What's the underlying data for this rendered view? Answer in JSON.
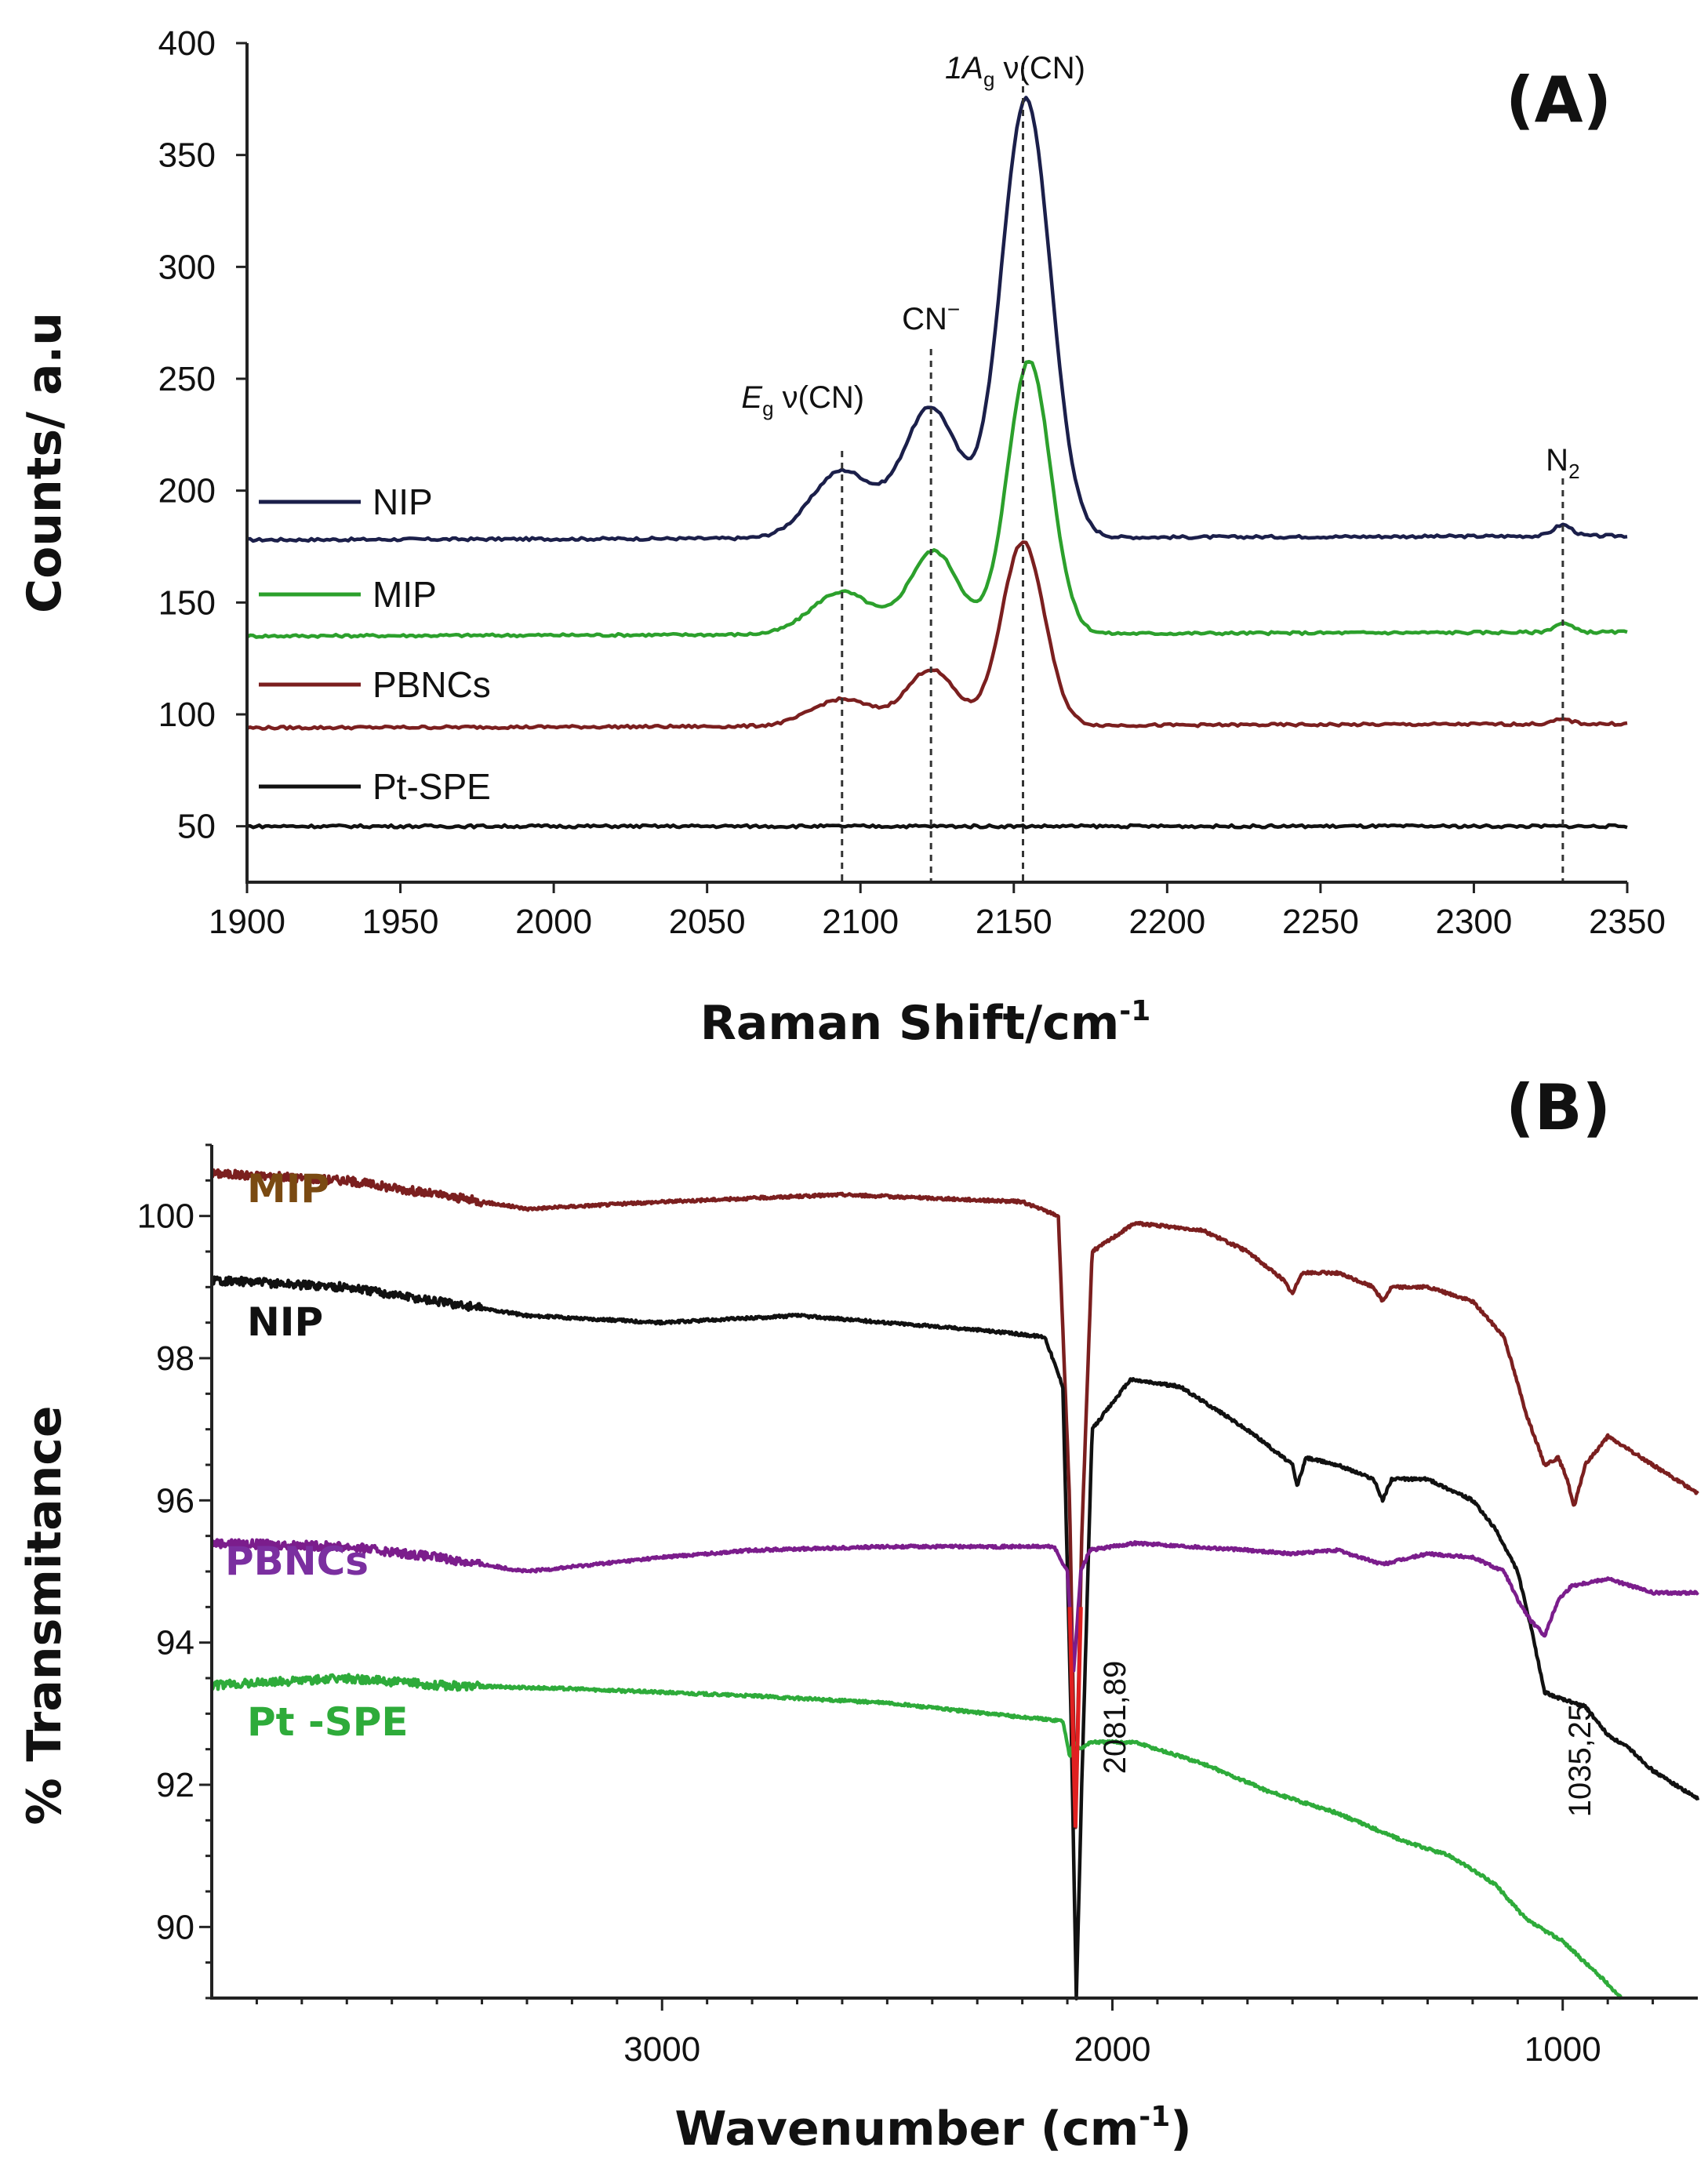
{
  "chart_data": [
    {
      "panel": "(A)",
      "type": "line",
      "xlabel": "Raman Shift/cm",
      "xlabel_sup": "-1",
      "ylabel": "Counts/ a.u",
      "xlim": [
        1900,
        2350
      ],
      "ylim": [
        25,
        400
      ],
      "x_ticks": [
        1900,
        1950,
        2000,
        2050,
        2100,
        2150,
        2200,
        2250,
        2300,
        2350
      ],
      "y_ticks": [
        50,
        100,
        150,
        200,
        250,
        300,
        350,
        400
      ],
      "legend": [
        "NIP",
        "MIP",
        "PBNCs",
        "Pt-SPE"
      ],
      "annotations": [
        {
          "x": 2094,
          "text": "E",
          "sub": "g",
          "rest": " ν(CN)"
        },
        {
          "x": 2123,
          "text": "CN",
          "sup": "−"
        },
        {
          "x": 2153,
          "text": "1A",
          "sub": "g",
          "rest": " ν(CN)"
        },
        {
          "x": 2329,
          "text": "N",
          "sub": "2"
        }
      ],
      "series": [
        {
          "name": "NIP",
          "color": "#1b1f4a",
          "baseline": 178,
          "peaks": [
            {
              "x": 2094,
              "h": 30,
              "w": 10
            },
            {
              "x": 2123,
              "h": 58,
              "w": 9
            },
            {
              "x": 2154,
              "h": 196,
              "w": 8
            },
            {
              "x": 2329,
              "h": 5,
              "w": 3
            }
          ]
        },
        {
          "name": "MIP",
          "color": "#2ca02c",
          "baseline": 135,
          "peaks": [
            {
              "x": 2094,
              "h": 19,
              "w": 10
            },
            {
              "x": 2124,
              "h": 37,
              "w": 8
            },
            {
              "x": 2155,
              "h": 122,
              "w": 7
            },
            {
              "x": 2329,
              "h": 4,
              "w": 3
            }
          ]
        },
        {
          "name": "PBNCs",
          "color": "#7b1f1f",
          "baseline": 94,
          "peaks": [
            {
              "x": 2094,
              "h": 12,
              "w": 10
            },
            {
              "x": 2123,
              "h": 25,
              "w": 8
            },
            {
              "x": 2153,
              "h": 82,
              "w": 7
            },
            {
              "x": 2329,
              "h": 2,
              "w": 3
            }
          ]
        },
        {
          "name": "Pt-SPE",
          "color": "#111111",
          "baseline": 50,
          "peaks": []
        }
      ]
    },
    {
      "panel": "(B)",
      "type": "line",
      "xlabel": "Wavenumber (cm",
      "xlabel_sup": "-1",
      "xlabel_end": ")",
      "ylabel": "% Transmitance",
      "xlim": [
        4000,
        700
      ],
      "ylim": [
        89,
        101
      ],
      "x_ticks": [
        3000,
        2000,
        1000
      ],
      "y_ticks": [
        90,
        92,
        94,
        96,
        98,
        100
      ],
      "annotations": [
        {
          "x": 2081.89,
          "text": "2081,89"
        },
        {
          "x": 1035.25,
          "text": "1035,25"
        }
      ],
      "series": [
        {
          "name": "MIP",
          "color": "#7b1f1f",
          "label_color": "#7a4a12",
          "points": [
            [
              4000,
              100.6
            ],
            [
              3700,
              100.5
            ],
            [
              3300,
              100.1
            ],
            [
              3000,
              100.2
            ],
            [
              2600,
              100.3
            ],
            [
              2200,
              100.2
            ],
            [
              2120,
              100.0
            ],
            [
              2095,
              96.0
            ],
            [
              2082,
              91.4
            ],
            [
              2068,
              95.5
            ],
            [
              2045,
              99.5
            ],
            [
              1950,
              99.9
            ],
            [
              1800,
              99.8
            ],
            [
              1700,
              99.5
            ],
            [
              1620,
              99.1
            ],
            [
              1600,
              98.9
            ],
            [
              1580,
              99.2
            ],
            [
              1500,
              99.2
            ],
            [
              1420,
              99.0
            ],
            [
              1400,
              98.8
            ],
            [
              1380,
              99.0
            ],
            [
              1300,
              99.0
            ],
            [
              1200,
              98.8
            ],
            [
              1130,
              98.3
            ],
            [
              1080,
              97.2
            ],
            [
              1040,
              96.5
            ],
            [
              1010,
              96.6
            ],
            [
              990,
              96.3
            ],
            [
              975,
              95.9
            ],
            [
              950,
              96.5
            ],
            [
              900,
              96.9
            ],
            [
              850,
              96.7
            ],
            [
              800,
              96.5
            ],
            [
              750,
              96.3
            ],
            [
              700,
              96.1
            ]
          ]
        },
        {
          "name": "NIP",
          "color": "#111111",
          "label_color": "#111111",
          "points": [
            [
              4000,
              99.1
            ],
            [
              3700,
              99.0
            ],
            [
              3500,
              98.8
            ],
            [
              3300,
              98.6
            ],
            [
              3000,
              98.5
            ],
            [
              2700,
              98.6
            ],
            [
              2300,
              98.4
            ],
            [
              2150,
              98.3
            ],
            [
              2110,
              97.6
            ],
            [
              2092,
              93.0
            ],
            [
              2080,
              89.0
            ],
            [
              2068,
              92.0
            ],
            [
              2045,
              97.0
            ],
            [
              1960,
              97.7
            ],
            [
              1850,
              97.6
            ],
            [
              1750,
              97.2
            ],
            [
              1680,
              96.9
            ],
            [
              1600,
              96.5
            ],
            [
              1590,
              96.2
            ],
            [
              1570,
              96.6
            ],
            [
              1500,
              96.5
            ],
            [
              1420,
              96.3
            ],
            [
              1400,
              96.0
            ],
            [
              1380,
              96.3
            ],
            [
              1300,
              96.3
            ],
            [
              1200,
              96.0
            ],
            [
              1150,
              95.6
            ],
            [
              1100,
              95.0
            ],
            [
              1070,
              94.2
            ],
            [
              1040,
              93.3
            ],
            [
              1000,
              93.2
            ],
            [
              950,
              93.1
            ],
            [
              900,
              92.7
            ],
            [
              850,
              92.5
            ],
            [
              800,
              92.2
            ],
            [
              750,
              92.0
            ],
            [
              700,
              91.8
            ]
          ]
        },
        {
          "name": "PBNCs",
          "color": "#7b1d8c",
          "label_color": "#7b2fa0",
          "points": [
            [
              4000,
              95.4
            ],
            [
              3700,
              95.35
            ],
            [
              3500,
              95.2
            ],
            [
              3300,
              95.0
            ],
            [
              3000,
              95.2
            ],
            [
              2800,
              95.3
            ],
            [
              2500,
              95.35
            ],
            [
              2200,
              95.35
            ],
            [
              2130,
              95.35
            ],
            [
              2100,
              95.0
            ],
            [
              2086,
              93.6
            ],
            [
              2070,
              95.0
            ],
            [
              2050,
              95.3
            ],
            [
              1950,
              95.4
            ],
            [
              1700,
              95.3
            ],
            [
              1600,
              95.25
            ],
            [
              1500,
              95.3
            ],
            [
              1400,
              95.1
            ],
            [
              1300,
              95.25
            ],
            [
              1200,
              95.2
            ],
            [
              1130,
              95.0
            ],
            [
              1100,
              94.6
            ],
            [
              1070,
              94.3
            ],
            [
              1040,
              94.1
            ],
            [
              1010,
              94.6
            ],
            [
              980,
              94.8
            ],
            [
              900,
              94.9
            ],
            [
              850,
              94.8
            ],
            [
              800,
              94.7
            ],
            [
              750,
              94.7
            ],
            [
              700,
              94.7
            ]
          ]
        },
        {
          "name": "Pt -SPE",
          "color": "#2eab3a",
          "label_color": "#2eab3a",
          "points": [
            [
              4000,
              93.4
            ],
            [
              3700,
              93.5
            ],
            [
              3500,
              93.4
            ],
            [
              3200,
              93.35
            ],
            [
              3000,
              93.3
            ],
            [
              2800,
              93.25
            ],
            [
              2500,
              93.15
            ],
            [
              2200,
              92.95
            ],
            [
              2110,
              92.9
            ],
            [
              2095,
              92.4
            ],
            [
              2085,
              92.6
            ],
            [
              2070,
              92.5
            ],
            [
              2050,
              92.6
            ],
            [
              1950,
              92.6
            ],
            [
              1800,
              92.3
            ],
            [
              1650,
              91.9
            ],
            [
              1500,
              91.6
            ],
            [
              1350,
              91.2
            ],
            [
              1250,
              91.0
            ],
            [
              1150,
              90.6
            ],
            [
              1080,
              90.1
            ],
            [
              1000,
              89.8
            ],
            [
              950,
              89.5
            ],
            [
              900,
              89.2
            ],
            [
              870,
              89.0
            ]
          ]
        }
      ]
    }
  ]
}
